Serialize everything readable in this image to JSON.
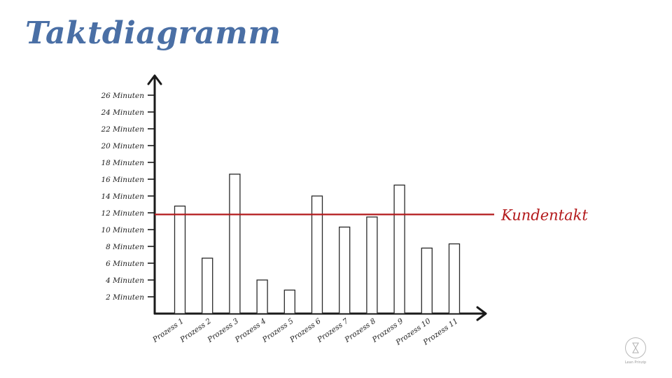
{
  "title": "Taktdiagramm",
  "colors": {
    "title": "#4a6fa5",
    "axis": "#1a1a1a",
    "bar_stroke": "#2a2a2a",
    "bar_fill": "#ffffff",
    "reference": "#b3191b",
    "tick_text": "#222222"
  },
  "logo": {
    "text": "Lean Prinzip",
    "icon": "hourglass-logo-icon"
  },
  "chart_data": {
    "type": "bar",
    "title": "Taktdiagramm",
    "xlabel": "",
    "ylabel": "",
    "categories": [
      "Prozess 1",
      "Prozess 2",
      "Prozess 3",
      "Prozess 4",
      "Prozess 5",
      "Prozess 6",
      "Prozess 7",
      "Prozess 8",
      "Prozess 9",
      "Prozess 10",
      "Prozess 11"
    ],
    "values": [
      12.8,
      6.6,
      16.6,
      4.0,
      2.8,
      14.0,
      10.3,
      11.5,
      15.3,
      7.8,
      8.3
    ],
    "ylim": [
      0,
      26
    ],
    "yticks": [
      2,
      4,
      6,
      8,
      10,
      12,
      14,
      16,
      18,
      20,
      22,
      24,
      26
    ],
    "ytick_labels": [
      "2 Minuten",
      "4 Minuten",
      "6 Minuten",
      "8 Minuten",
      "10 Minuten",
      "12 Minuten",
      "14 Minuten",
      "16 Minuten",
      "18 Minuten",
      "20 Minuten",
      "22 Minuten",
      "24 Minuten",
      "26 Minuten"
    ],
    "reference_line": {
      "value": 11.8,
      "label": "Kundentakt"
    },
    "grid": false,
    "legend": "none"
  }
}
